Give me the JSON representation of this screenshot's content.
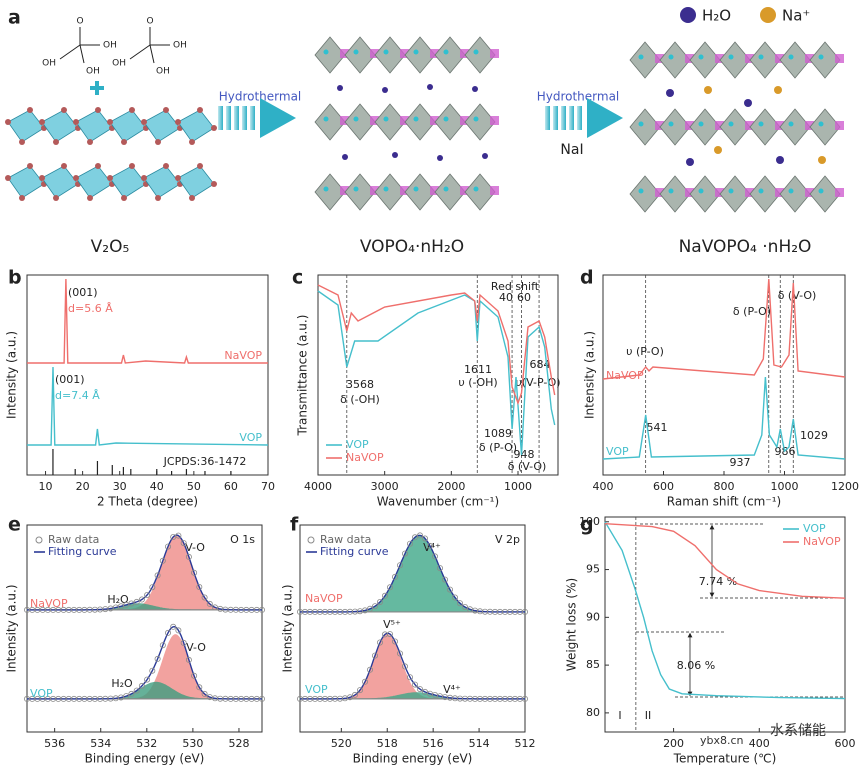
{
  "schematic": {
    "panel": "a",
    "molecules": [
      {
        "labels": [
          "O",
          "OH",
          "OH",
          "OH"
        ]
      },
      {
        "labels": [
          "O",
          "OH",
          "OH",
          "OH"
        ]
      }
    ],
    "legend": [
      "H₂O",
      "Na⁺"
    ],
    "arrows": [
      "Hydrothermal",
      "Hydrothermal"
    ],
    "reagent": "NaI",
    "materials": [
      "V₂O₅",
      "VOPO₄·nH₂O",
      "NaVOPO₄ ·nH₂O"
    ]
  },
  "chart_data": [
    {
      "type": "line",
      "panel": "b",
      "xlabel": "2 Theta (degree)",
      "ylabel": "Intensity (a.u.)",
      "xlim": [
        5,
        70
      ],
      "ylim": [
        0,
        100
      ],
      "xticks": [
        10,
        20,
        30,
        40,
        50,
        60,
        70
      ],
      "series": [
        {
          "name": "NaVOP",
          "color": "#ef6f6c",
          "x": [
            5,
            15,
            15.5,
            16,
            30.5,
            31,
            31.5,
            37,
            47.5,
            48,
            48.5,
            70
          ],
          "values": [
            56,
            56,
            98,
            56,
            56,
            60,
            56,
            57,
            56,
            59,
            56,
            56
          ]
        },
        {
          "name": "VOP",
          "color": "#45bfcc",
          "x": [
            5,
            11.5,
            12,
            12.5,
            23.5,
            24,
            24.5,
            29,
            70
          ],
          "values": [
            15,
            15,
            54,
            15,
            15,
            23,
            15,
            16,
            15
          ]
        }
      ],
      "sticks": {
        "name": "JCPDS:36-1472",
        "color": "#222222",
        "x": [
          12,
          18,
          24,
          28,
          31,
          33,
          40,
          44,
          48,
          53,
          60
        ],
        "values": [
          13,
          3,
          7,
          5,
          4,
          3,
          3,
          2,
          3,
          2,
          2
        ]
      },
      "annotations": [
        "(001)",
        "d=5.6 Å",
        "(001)",
        "d=7.4 Å"
      ]
    },
    {
      "type": "line",
      "panel": "c",
      "xlabel": "Wavenumber (cm⁻¹)",
      "ylabel": "Transmittance (a.u.)",
      "xlim": [
        4000,
        400
      ],
      "ylim": [
        0,
        100
      ],
      "xticks": [
        4000,
        3000,
        2000,
        1000
      ],
      "legend": "lower left",
      "series": [
        {
          "name": "VOP",
          "color": "#45bfcc",
          "x": [
            4000,
            3700,
            3568,
            3450,
            3100,
            2500,
            1800,
            1650,
            1611,
            1570,
            1300,
            1150,
            1089,
            1030,
            948,
            850,
            684,
            600,
            500,
            450
          ],
          "values": [
            92,
            85,
            54,
            67,
            67,
            81,
            90,
            87,
            67,
            87,
            79,
            59,
            23,
            49,
            10,
            69,
            74,
            64,
            33,
            25
          ]
        },
        {
          "name": "NaVOP",
          "color": "#ef6f6c",
          "x": [
            4000,
            3700,
            3568,
            3500,
            3400,
            3000,
            2000,
            1800,
            1650,
            1611,
            1570,
            1300,
            1150,
            1089,
            1000,
            948,
            850,
            684,
            600,
            500,
            450
          ],
          "values": [
            95,
            90,
            72,
            81,
            77,
            84,
            90,
            91,
            87,
            77,
            90,
            82,
            67,
            44,
            36,
            41,
            74,
            77,
            69,
            49,
            40
          ]
        }
      ],
      "reference_lines": [
        3568,
        1611,
        1089,
        948,
        684
      ],
      "annotations": [
        "3568",
        "δ (-OH)",
        "1611",
        "υ (-OH)",
        "1089",
        "δ (P-O)",
        "948",
        "δ (V-O)",
        "684",
        "υ(V-P-O)",
        "Red shift",
        "40",
        "60"
      ]
    },
    {
      "type": "line",
      "panel": "d",
      "xlabel": "Raman shift (cm⁻¹)",
      "ylabel": "Intensity (a.u.)",
      "xlim": [
        400,
        1200
      ],
      "ylim": [
        0,
        100
      ],
      "xticks": [
        400,
        600,
        800,
        1000,
        1200
      ],
      "series": [
        {
          "name": "NaVOP",
          "color": "#ef6f6c",
          "x": [
            400,
            520,
            541,
            552,
            565,
            900,
            930,
            948,
            965,
            990,
            1015,
            1029,
            1045,
            1200
          ],
          "values": [
            48,
            50,
            54,
            52,
            54,
            50,
            58,
            98,
            55,
            54,
            60,
            96,
            52,
            49
          ]
        },
        {
          "name": "VOP",
          "color": "#45bfcc",
          "x": [
            400,
            520,
            541,
            560,
            900,
            925,
            937,
            950,
            975,
            986,
            1000,
            1015,
            1029,
            1045,
            1200
          ],
          "values": [
            8,
            9,
            30,
            9,
            10,
            20,
            49,
            20,
            14,
            23,
            12,
            14,
            28,
            10,
            8
          ]
        }
      ],
      "reference_lines": [
        541,
        948,
        986,
        1029
      ],
      "annotations": [
        "υ (P-O)",
        "δ (P-O)",
        "δ (V-O)",
        "541",
        "937",
        "986",
        "1029"
      ]
    },
    {
      "type": "area",
      "panel": "e",
      "title": "O 1s",
      "xlabel": "Binding energy (eV)",
      "ylabel": "Intensity (a.u.)",
      "xlim": [
        537.2,
        527
      ],
      "ylim": [
        0,
        100
      ],
      "xticks": [
        536,
        534,
        532,
        530,
        528
      ],
      "raw_name": "Raw data",
      "raw_color": "#8a8a8a",
      "fit_name": "Fitting curve",
      "fit_color": "#2b3a97",
      "spectra": [
        {
          "name": "NaVOP",
          "color": "#ef6f6c",
          "baseline": 59,
          "components": [
            {
              "name": "V-O",
              "center": 530.7,
              "height": 36,
              "fwhm": 1.5,
              "color": "#f08c88"
            },
            {
              "name": "H₂O",
              "center": 532.4,
              "height": 3,
              "fwhm": 1.6,
              "color": "#3f9e80"
            }
          ]
        },
        {
          "name": "VOP",
          "color": "#45bfcc",
          "baseline": 16,
          "components": [
            {
              "name": "V-O",
              "center": 530.75,
              "height": 31,
              "fwhm": 1.3,
              "color": "#f08c88"
            },
            {
              "name": "H₂O",
              "center": 531.6,
              "height": 8,
              "fwhm": 1.6,
              "color": "#3f9e80"
            }
          ]
        }
      ]
    },
    {
      "type": "area",
      "panel": "f",
      "title": "V 2p",
      "xlabel": "Binding energy (eV)",
      "ylabel": "Intensity (a.u.)",
      "xlim": [
        521.8,
        512
      ],
      "ylim": [
        0,
        100
      ],
      "xticks": [
        520,
        518,
        516,
        514,
        512
      ],
      "raw_name": "Raw data",
      "raw_color": "#8a8a8a",
      "fit_name": "Fitting curve",
      "fit_color": "#2b3a97",
      "spectra": [
        {
          "name": "NaVOP",
          "color": "#ef6f6c",
          "baseline": 58,
          "components": [
            {
              "name": "V⁴⁺",
              "center": 516.6,
              "height": 37,
              "fwhm": 2.0,
              "color": "#3fa889"
            }
          ]
        },
        {
          "name": "VOP",
          "color": "#45bfcc",
          "baseline": 16,
          "components": [
            {
              "name": "V⁵⁺",
              "center": 518.0,
              "height": 31,
              "fwhm": 1.4,
              "color": "#f08c88"
            },
            {
              "name": "V⁴⁺",
              "center": 516.7,
              "height": 3,
              "fwhm": 1.8,
              "color": "#3fa889"
            }
          ]
        }
      ]
    },
    {
      "type": "line",
      "panel": "g",
      "xlabel": "Temperature (℃)",
      "ylabel": "Weight loss (%)",
      "xlim": [
        40,
        600
      ],
      "ylim": [
        78,
        100.5
      ],
      "xticks": [
        200,
        400,
        600
      ],
      "yticks": [
        80,
        85,
        90,
        95,
        100
      ],
      "legend": "upper right",
      "series": [
        {
          "name": "VOP",
          "color": "#45bfcc",
          "x": [
            40,
            80,
            110,
            130,
            150,
            170,
            190,
            220,
            300,
            450,
            600
          ],
          "values": [
            100,
            97,
            93,
            90,
            86.5,
            84,
            82.5,
            82,
            81.8,
            81.6,
            81.5
          ]
        },
        {
          "name": "NaVOP",
          "color": "#ef6f6c",
          "x": [
            40,
            150,
            200,
            250,
            300,
            350,
            400,
            500,
            600
          ],
          "values": [
            99.8,
            99.5,
            99,
            97.5,
            95,
            93.5,
            92.8,
            92.2,
            92
          ]
        }
      ],
      "reference_lines": [
        112
      ],
      "annotations": [
        "7.74 %",
        "8.06 %",
        "I",
        "II"
      ]
    }
  ],
  "watermark": {
    "site": "ybx8.cn",
    "brand": "水系储能"
  }
}
